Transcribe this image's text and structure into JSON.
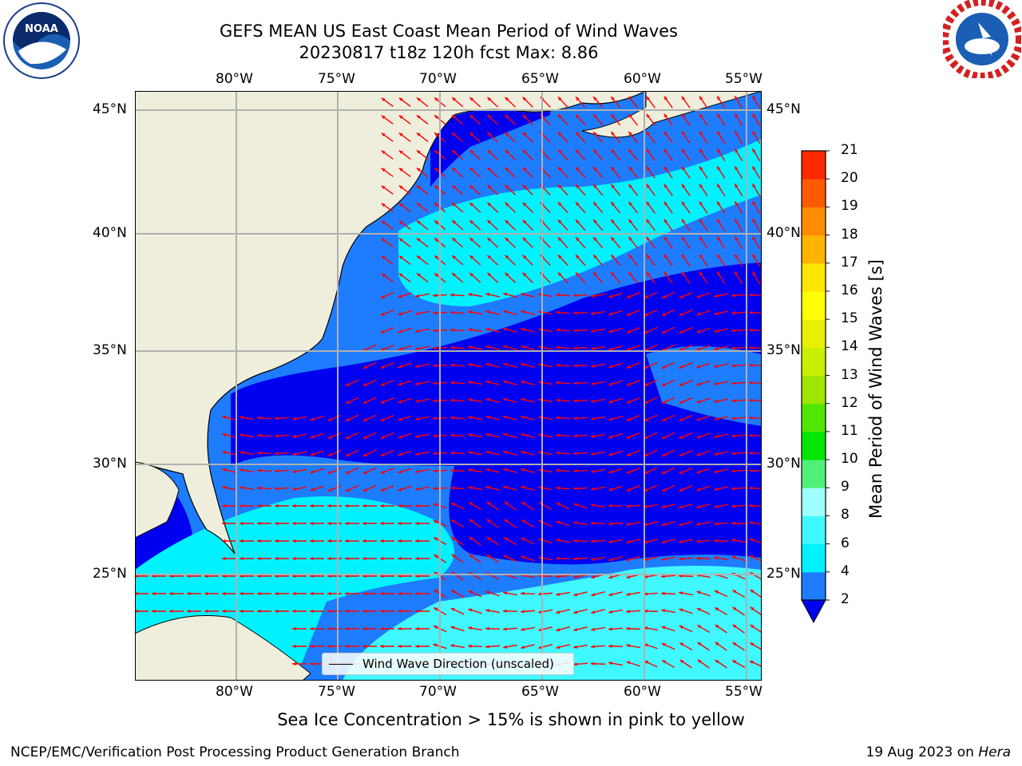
{
  "title": {
    "line1": "GEFS MEAN US East Coast Mean Period of Wind Waves",
    "line2": "20230817 t18z 120h fcst   Max: 8.86"
  },
  "map": {
    "lon_ticks": [
      "80°W",
      "75°W",
      "70°W",
      "65°W",
      "60°W",
      "55°W"
    ],
    "lat_ticks": [
      "45°N",
      "40°N",
      "35°N",
      "30°N",
      "25°N"
    ],
    "legend": "Wind Wave Direction (unscaled)",
    "colors": {
      "land": "#efeedc",
      "ocean_low": "#0000f0",
      "ocean_mid": "#1e7cff",
      "ocean_high": "#00f2ff",
      "arrows": "#ff0000",
      "grid": "#b0b0b0"
    }
  },
  "colorbar": {
    "label": "Mean Period of Wind Waves [s]",
    "ticks": [
      "2",
      "4",
      "6",
      "8",
      "9",
      "10",
      "11",
      "12",
      "13",
      "14",
      "15",
      "16",
      "17",
      "18",
      "19",
      "20",
      "21"
    ],
    "colors": [
      "#1e7cff",
      "#00f2ff",
      "#40f8ff",
      "#a0ffff",
      "#50f078",
      "#00e600",
      "#50e600",
      "#a0e600",
      "#c8f000",
      "#e6f000",
      "#ffff00",
      "#ffe600",
      "#ffb400",
      "#ff8c00",
      "#ff5a00",
      "#ff2800"
    ]
  },
  "footer": {
    "subtitle": "Sea Ice Concentration > 15% is shown in pink to yellow",
    "credit": "NCEP/EMC/Verification Post Processing Product Generation Branch",
    "date": "19 Aug 2023 on",
    "machine": "Hera"
  }
}
